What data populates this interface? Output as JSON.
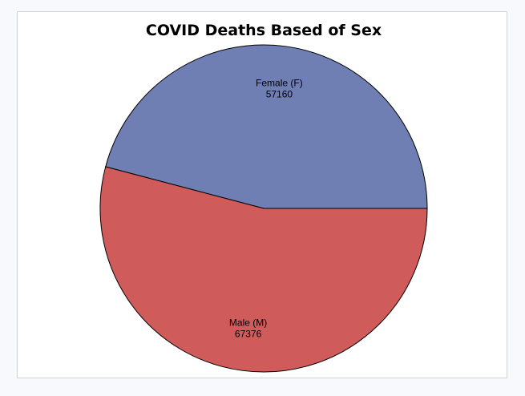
{
  "chart_data": {
    "type": "pie",
    "title": "COVID Deaths Based of Sex",
    "slices": [
      {
        "label": "Female (F)",
        "value": 57160,
        "color": "#6f7eb3"
      },
      {
        "label": "Male (M)",
        "value": 67376,
        "color": "#d05b5b"
      }
    ],
    "start": "3 o'clock, counter-clockwise",
    "legend": "none"
  }
}
